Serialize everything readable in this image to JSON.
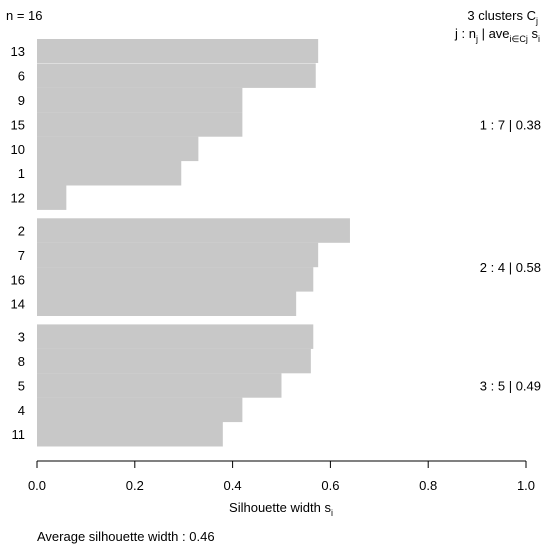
{
  "chart_data": {
    "type": "bar",
    "orientation": "horizontal",
    "n_label": "n = 16",
    "header_line1": "3  clusters  C",
    "header_line1_sub": "j",
    "header_line2": {
      "j": "j :  n",
      "j_sub": "j",
      "sep": " | ave",
      "ave_sub": "i∈Cj",
      "s": "  s",
      "s_sub": "i"
    },
    "xlabel": "Silhouette width s",
    "xlabel_sub": "i",
    "xlim": [
      0,
      1
    ],
    "xticks": [
      0.0,
      0.2,
      0.4,
      0.6,
      0.8,
      1.0
    ],
    "xtick_labels": [
      "0.0",
      "0.2",
      "0.4",
      "0.6",
      "0.8",
      "1.0"
    ],
    "footer": "Average silhouette width :  0.46",
    "bar_color": "#c8c8c8",
    "clusters": [
      {
        "summary": "1 :  7  |  0.38",
        "items": [
          {
            "label": "13",
            "value": 0.575
          },
          {
            "label": "6",
            "value": 0.57
          },
          {
            "label": "9",
            "value": 0.42
          },
          {
            "label": "15",
            "value": 0.42
          },
          {
            "label": "10",
            "value": 0.33
          },
          {
            "label": "1",
            "value": 0.295
          },
          {
            "label": "12",
            "value": 0.06
          }
        ]
      },
      {
        "summary": "2 :  4  |  0.58",
        "items": [
          {
            "label": "2",
            "value": 0.64
          },
          {
            "label": "7",
            "value": 0.575
          },
          {
            "label": "16",
            "value": 0.565
          },
          {
            "label": "14",
            "value": 0.53
          }
        ]
      },
      {
        "summary": "3 :  5  |  0.49",
        "items": [
          {
            "label": "3",
            "value": 0.565
          },
          {
            "label": "8",
            "value": 0.56
          },
          {
            "label": "5",
            "value": 0.5
          },
          {
            "label": "4",
            "value": 0.42
          },
          {
            "label": "11",
            "value": 0.38
          }
        ]
      }
    ]
  }
}
